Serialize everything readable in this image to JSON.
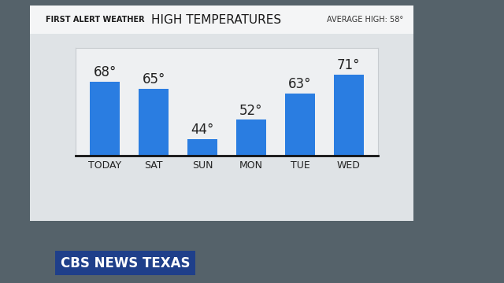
{
  "chart_data": {
    "type": "bar",
    "title": "HIGH TEMPERATURES",
    "subtitle": "AVERAGE HIGH: 58°",
    "annotations": [
      "FIRST ALERT WEATHER",
      "CBS NEWS TEXAS"
    ],
    "categories": [
      "TODAY",
      "SAT",
      "SUN",
      "MON",
      "TUE",
      "WED"
    ],
    "values": [
      68,
      65,
      44,
      52,
      63,
      71
    ],
    "value_labels": [
      "68°",
      "65°",
      "44°",
      "52°",
      "63°",
      "71°"
    ],
    "color": "#2a7de1",
    "ylim": [
      37,
      82
    ],
    "yticks": [],
    "grid": false,
    "data_labels": true,
    "tick_labels": "x"
  }
}
